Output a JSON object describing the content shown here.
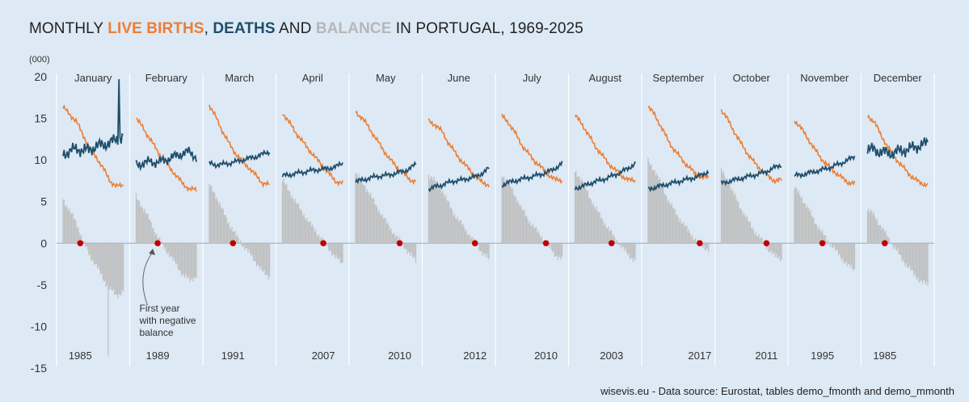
{
  "title": {
    "prefix": "MONTHLY ",
    "births": "LIVE BIRTHS",
    "sep1": ", ",
    "deaths": "DEATHS",
    "and": " AND ",
    "balance": "BALANCE",
    "suffix": " IN PORTUGAL, 1969-2025"
  },
  "source": "wisevis.eu - Data source: Eurostat, tables demo_fmonth and demo_mmonth",
  "colors": {
    "births": "#ed7d31",
    "deaths": "#1f4e6b",
    "balance": "#bfbfbf",
    "marker": "#c00000",
    "background": "#dde9f5"
  },
  "chart_data": {
    "type": "line",
    "unit_label": "(000)",
    "y_ticks": [
      20,
      15,
      10,
      5,
      0,
      -5,
      -10,
      -15
    ],
    "ylim": [
      -15,
      20
    ],
    "year_range": [
      1969,
      2025
    ],
    "annotation": {
      "text": [
        "First year",
        "with negative",
        "balance"
      ],
      "panel": "February"
    },
    "series": [
      {
        "name": "Live births",
        "color": "#ed7d31"
      },
      {
        "name": "Deaths",
        "color": "#1f4e6b"
      },
      {
        "name": "Balance",
        "color": "#bfbfbf"
      }
    ],
    "panels": [
      {
        "month": "January",
        "first_negative_year": "1985",
        "births": [
          16.3,
          15.5,
          14.6,
          13.0,
          11.4,
          10.3,
          9.0,
          7.5,
          6.8,
          7.0
        ],
        "deaths": [
          10.8,
          11.0,
          11.4,
          11.1,
          11.3,
          11.6,
          11.9,
          12.0,
          12.5,
          12.8
        ],
        "balance": [
          5.3,
          3.9,
          2.4,
          0.3,
          -1.5,
          -2.7,
          -4.3,
          -5.5,
          -6.3,
          -5.8
        ]
      },
      {
        "month": "February",
        "first_negative_year": "1989",
        "births": [
          15.0,
          13.9,
          12.6,
          11.3,
          10.1,
          9.1,
          8.1,
          7.1,
          6.5,
          6.4
        ],
        "deaths": [
          9.4,
          9.6,
          9.8,
          9.7,
          9.9,
          10.2,
          10.5,
          10.8,
          11.0,
          10.3
        ],
        "balance": [
          5.6,
          4.3,
          2.8,
          1.1,
          -0.3,
          -1.4,
          -2.6,
          -3.8,
          -4.5,
          -3.9
        ]
      },
      {
        "month": "March",
        "first_negative_year": "1991",
        "births": [
          16.6,
          15.1,
          13.4,
          11.9,
          10.7,
          9.8,
          9.0,
          8.1,
          7.2,
          7.0
        ],
        "deaths": [
          9.6,
          9.4,
          9.5,
          9.6,
          9.8,
          10.0,
          10.2,
          10.4,
          10.7,
          11.0
        ],
        "balance": [
          7.0,
          5.7,
          3.9,
          2.3,
          0.9,
          -0.2,
          -1.2,
          -2.3,
          -3.5,
          -4.0
        ]
      },
      {
        "month": "April",
        "first_negative_year": "2007",
        "births": [
          15.7,
          14.5,
          13.3,
          12.2,
          11.2,
          10.2,
          9.3,
          8.3,
          7.4,
          7.2
        ],
        "deaths": [
          8.1,
          8.2,
          8.4,
          8.5,
          8.7,
          8.8,
          8.9,
          9.0,
          9.2,
          9.6
        ],
        "balance": [
          7.6,
          6.3,
          4.9,
          3.7,
          2.5,
          1.4,
          0.4,
          -0.7,
          -1.8,
          -2.4
        ]
      },
      {
        "month": "May",
        "first_negative_year": "2010",
        "births": [
          15.8,
          15.0,
          13.9,
          12.6,
          11.4,
          10.2,
          9.3,
          8.5,
          7.7,
          7.4
        ],
        "deaths": [
          7.4,
          7.6,
          7.8,
          8.0,
          8.1,
          8.2,
          8.4,
          8.6,
          8.9,
          9.5
        ],
        "balance": [
          8.4,
          7.4,
          6.1,
          4.6,
          3.3,
          2.0,
          0.9,
          -0.1,
          -1.2,
          -2.1
        ]
      },
      {
        "month": "June",
        "first_negative_year": "2012",
        "births": [
          14.7,
          14.2,
          13.4,
          12.0,
          10.8,
          9.8,
          8.9,
          8.0,
          7.3,
          7.0
        ],
        "deaths": [
          6.5,
          6.8,
          7.0,
          7.3,
          7.5,
          7.6,
          7.8,
          8.0,
          8.4,
          9.0
        ],
        "balance": [
          8.2,
          7.4,
          6.4,
          4.7,
          3.3,
          2.2,
          1.1,
          0.0,
          -1.1,
          -2.0
        ]
      },
      {
        "month": "July",
        "first_negative_year": "2010",
        "births": [
          15.3,
          14.5,
          13.2,
          11.8,
          10.7,
          9.8,
          9.0,
          8.2,
          7.6,
          7.6
        ],
        "deaths": [
          7.0,
          7.3,
          7.5,
          7.7,
          7.9,
          8.1,
          8.3,
          8.6,
          9.0,
          9.6
        ],
        "balance": [
          8.3,
          7.2,
          5.7,
          4.1,
          2.8,
          1.7,
          0.7,
          -0.4,
          -1.4,
          -2.0
        ]
      },
      {
        "month": "August",
        "first_negative_year": "2003",
        "births": [
          15.3,
          14.4,
          13.0,
          11.7,
          10.6,
          9.6,
          8.8,
          8.1,
          7.6,
          7.5
        ],
        "deaths": [
          6.6,
          6.8,
          7.1,
          7.4,
          7.6,
          7.9,
          8.2,
          8.6,
          9.0,
          9.6
        ],
        "balance": [
          8.7,
          7.6,
          5.9,
          4.3,
          3.0,
          1.7,
          0.6,
          -0.5,
          -1.4,
          -2.1
        ]
      },
      {
        "month": "September",
        "first_negative_year": "2017",
        "births": [
          16.4,
          15.4,
          13.9,
          12.3,
          11.1,
          10.1,
          9.2,
          8.4,
          7.9,
          7.9
        ],
        "deaths": [
          6.5,
          6.7,
          6.9,
          7.1,
          7.3,
          7.5,
          7.7,
          7.9,
          8.2,
          8.6
        ],
        "balance": [
          9.9,
          8.7,
          7.0,
          5.2,
          3.8,
          2.6,
          1.5,
          0.5,
          -0.3,
          -0.7
        ]
      },
      {
        "month": "October",
        "first_negative_year": "2011",
        "births": [
          16.0,
          14.8,
          13.3,
          11.9,
          10.7,
          9.6,
          8.8,
          8.0,
          7.5,
          7.6
        ],
        "deaths": [
          7.2,
          7.4,
          7.6,
          7.8,
          8.0,
          8.2,
          8.4,
          8.7,
          9.1,
          9.4
        ],
        "balance": [
          8.8,
          7.4,
          5.7,
          4.1,
          2.7,
          1.4,
          0.4,
          -0.7,
          -1.6,
          -1.8
        ]
      },
      {
        "month": "November",
        "first_negative_year": "1995",
        "births": [
          14.8,
          13.8,
          12.6,
          11.3,
          10.2,
          9.3,
          8.6,
          7.9,
          7.3,
          7.2
        ],
        "deaths": [
          8.1,
          8.2,
          8.4,
          8.6,
          8.8,
          9.0,
          9.3,
          9.6,
          10.0,
          10.4
        ],
        "balance": [
          6.7,
          5.6,
          4.2,
          2.7,
          1.4,
          0.3,
          -0.7,
          -1.7,
          -2.7,
          -3.2
        ]
      },
      {
        "month": "December",
        "first_negative_year": "1985",
        "births": [
          15.3,
          14.6,
          13.0,
          11.6,
          10.4,
          9.4,
          8.5,
          7.7,
          7.2,
          7.0
        ],
        "deaths": [
          11.3,
          11.2,
          11.0,
          10.8,
          10.9,
          11.1,
          11.3,
          11.5,
          11.8,
          12.0
        ],
        "balance": [
          4.0,
          3.4,
          2.0,
          0.8,
          -0.5,
          -1.7,
          -2.8,
          -3.8,
          -4.6,
          -5.0
        ]
      }
    ]
  }
}
